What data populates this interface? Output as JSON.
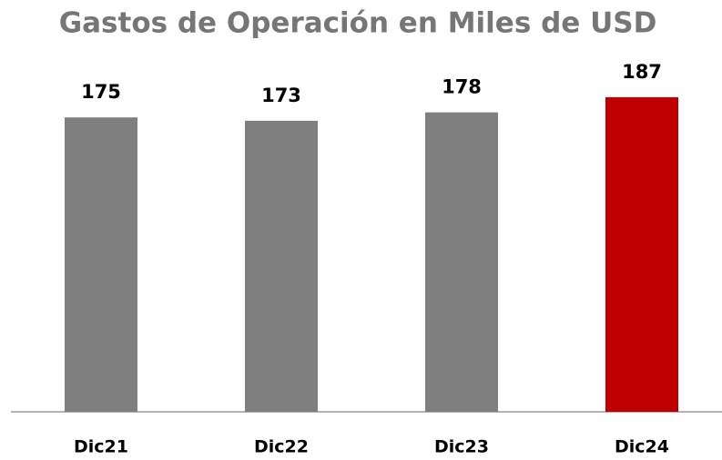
{
  "chart_data": {
    "type": "bar",
    "title": "Gastos de Operación en Miles de USD",
    "categories": [
      "Dic21",
      "Dic22",
      "Dic23",
      "Dic24"
    ],
    "values": [
      175,
      173,
      178,
      187
    ],
    "colors": [
      "#7f7f7f",
      "#7f7f7f",
      "#7f7f7f",
      "#c00000"
    ],
    "ylim": [
      0,
      190
    ]
  }
}
